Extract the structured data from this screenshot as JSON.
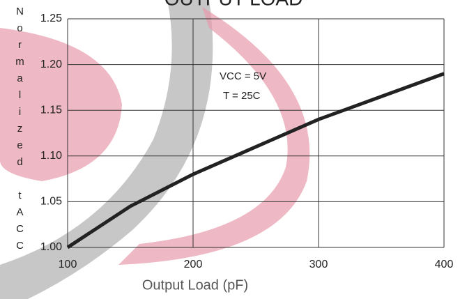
{
  "chart_data": {
    "type": "line",
    "title": "OUTPUT LOAD",
    "y_label": "Normalized tACC",
    "x_label": "Output Load (pF)",
    "annotations": [
      "VCC = 5V",
      "T = 25C"
    ],
    "x": [
      100,
      150,
      200,
      250,
      300,
      350,
      400
    ],
    "series": [
      {
        "color": "#222222",
        "values": [
          1.0,
          1.045,
          1.08,
          1.11,
          1.14,
          1.165,
          1.19
        ]
      }
    ],
    "xlim": [
      100,
      400
    ],
    "xticks": [
      100,
      200,
      300,
      400
    ],
    "ylim": [
      1.0,
      1.25
    ],
    "yticks": [
      {
        "value": 1.0,
        "label": "1.00"
      },
      1.05,
      {
        "value": 1.1,
        "label": "1.10"
      },
      1.15,
      {
        "value": 1.2,
        "label": "1.20"
      },
      1.25
    ],
    "grid": true
  }
}
